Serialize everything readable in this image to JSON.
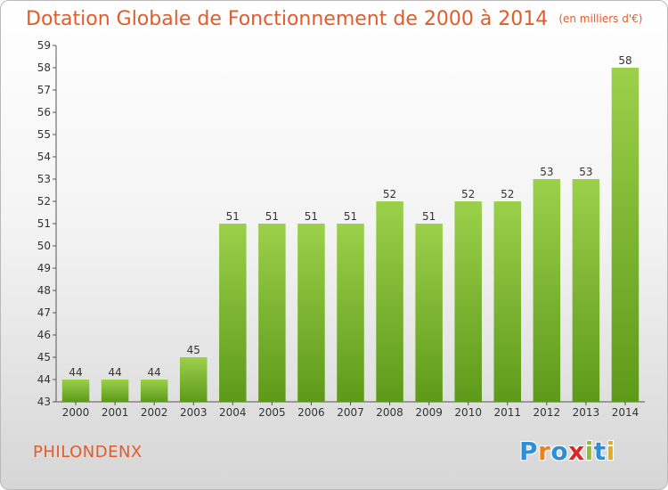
{
  "header": {
    "title": "Dotation Globale de Fonctionnement de 2000 à 2014",
    "unit": "(en milliers d'€)"
  },
  "footer": {
    "commune": "PHILONDENX",
    "logo_letters": [
      {
        "char": "P",
        "color": "#2e8fd6"
      },
      {
        "char": "r",
        "color": "#e8831f"
      },
      {
        "char": "o",
        "color": "#2e8fd6"
      },
      {
        "char": "x",
        "color": "#d92a2a"
      },
      {
        "char": "i",
        "color": "#8fbf2a"
      },
      {
        "char": "t",
        "color": "#2e8fd6"
      },
      {
        "char": "i",
        "color": "#e8a81f"
      }
    ]
  },
  "colors": {
    "title": "#e35b2b",
    "bar_light": "#9bd04a",
    "bar_dark": "#5e9a1a",
    "axis": "#555555",
    "grid": "#e4e4e4"
  },
  "chart_data": {
    "type": "bar",
    "categories": [
      "2000",
      "2001",
      "2002",
      "2003",
      "2004",
      "2005",
      "2006",
      "2007",
      "2008",
      "2009",
      "2010",
      "2011",
      "2012",
      "2013",
      "2014"
    ],
    "values": [
      44,
      44,
      44,
      45,
      51,
      51,
      51,
      51,
      52,
      51,
      52,
      52,
      53,
      53,
      58
    ],
    "ylim": [
      43,
      59
    ],
    "yticks": [
      43,
      44,
      45,
      46,
      47,
      48,
      49,
      50,
      51,
      52,
      53,
      54,
      55,
      56,
      57,
      58,
      59
    ],
    "data_labels": true,
    "grid": false,
    "legend": "none"
  }
}
